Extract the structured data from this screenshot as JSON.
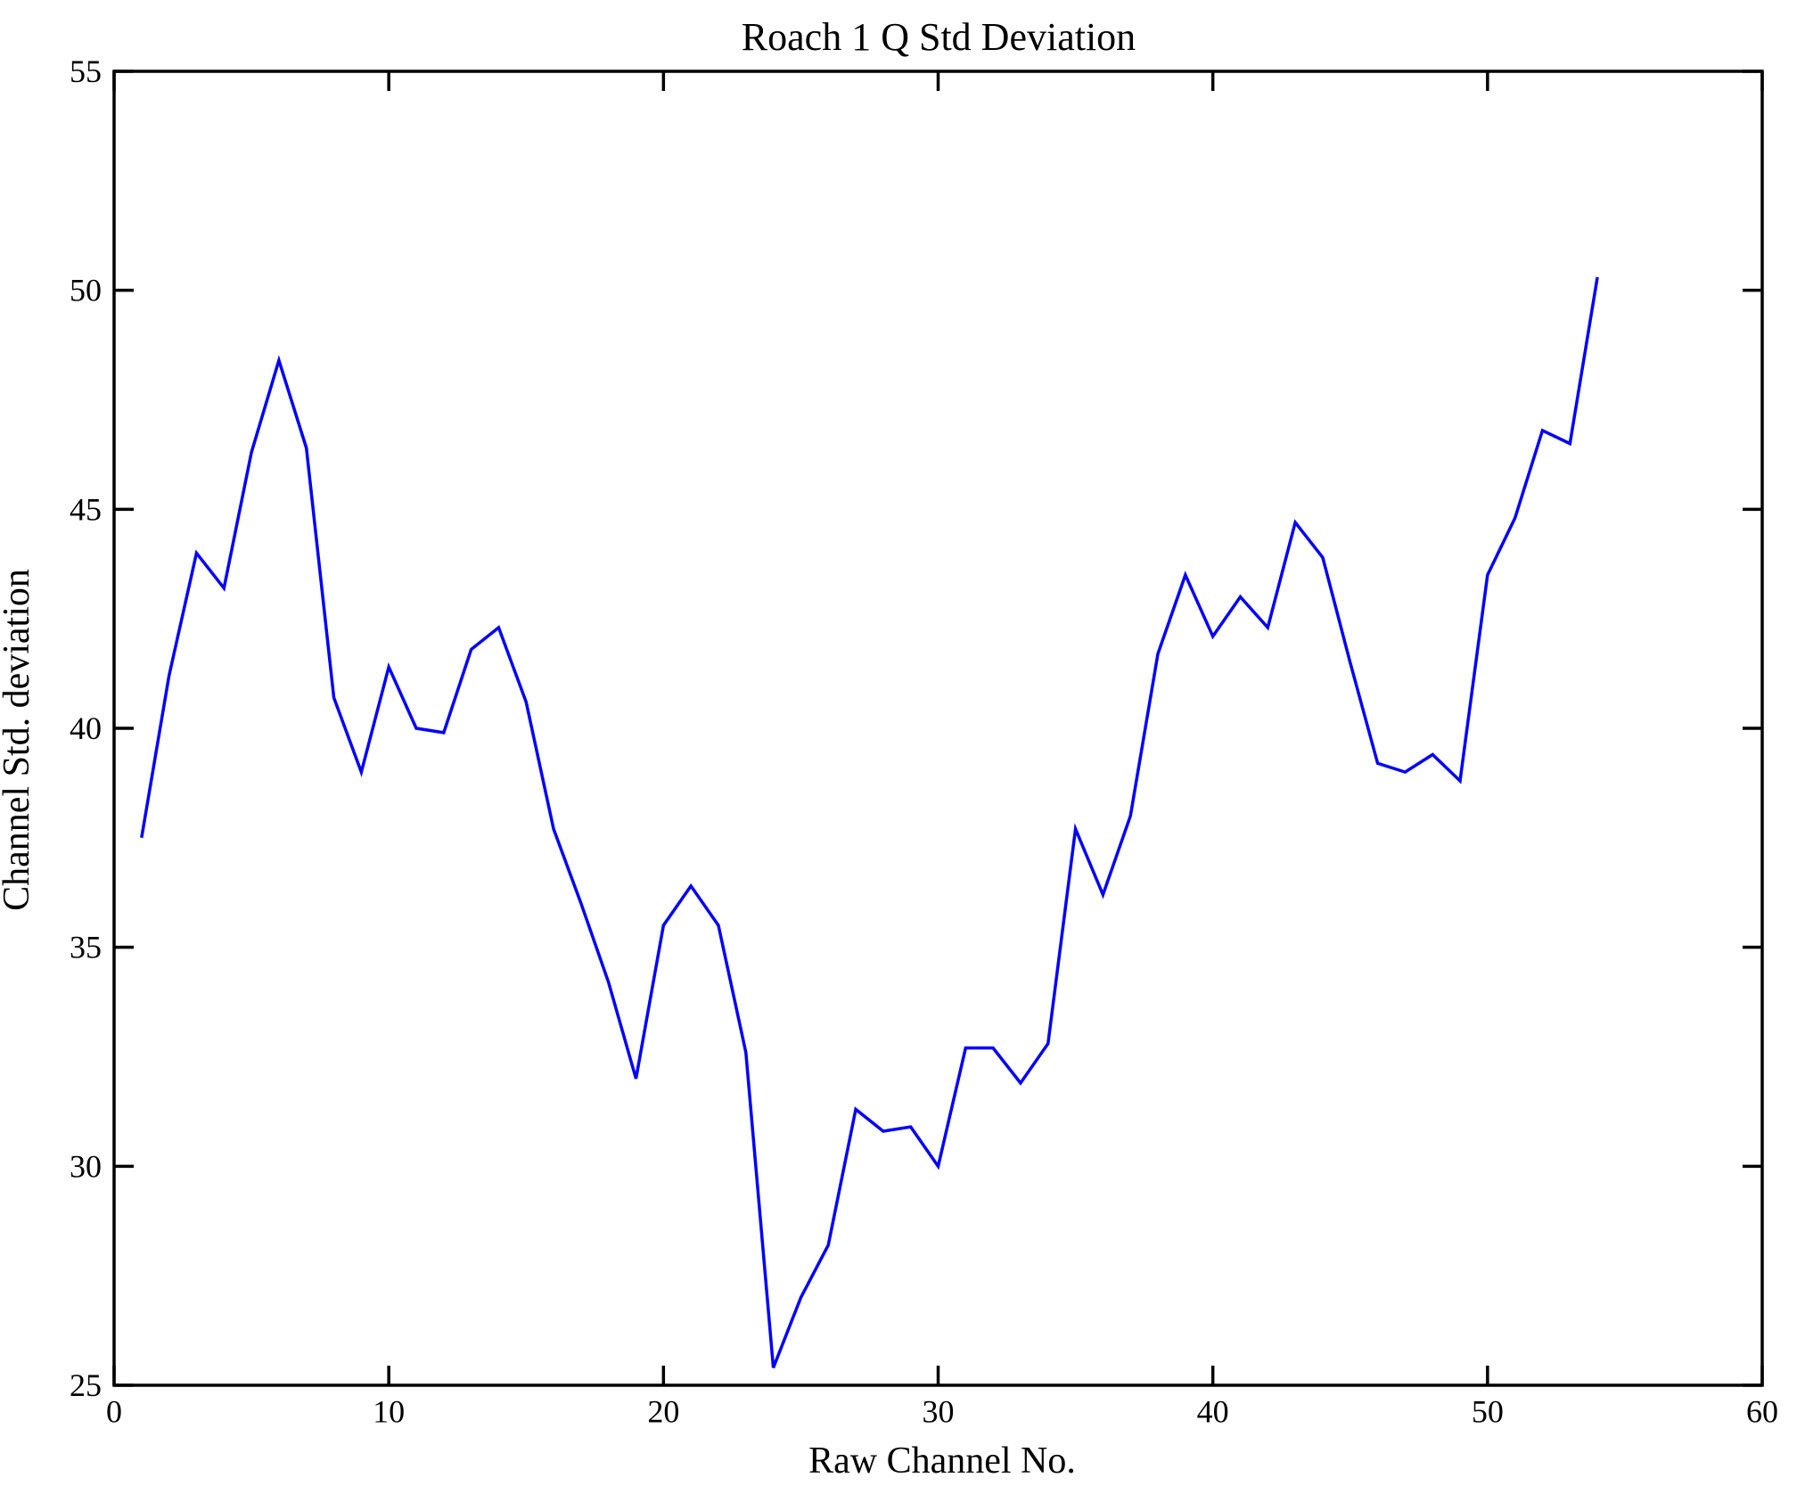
{
  "figure": {
    "background": "#ffffff"
  },
  "chart_data": {
    "type": "line",
    "title": "Roach 1 Q Std Deviation",
    "xlabel": "Raw Channel No.",
    "ylabel": "Channel Std. deviation",
    "xlim": [
      0,
      60
    ],
    "ylim": [
      25,
      55
    ],
    "xticks": [
      0,
      10,
      20,
      30,
      40,
      50,
      60
    ],
    "yticks": [
      25,
      30,
      35,
      40,
      45,
      50,
      55
    ],
    "grid": false,
    "legend_position": "none",
    "line_color": "#0000ff",
    "axis_color": "#000000",
    "series_name": "Channel Std. deviation",
    "x": [
      1,
      2,
      3,
      4,
      5,
      6,
      7,
      8,
      9,
      10,
      11,
      12,
      13,
      14,
      15,
      16,
      17,
      18,
      19,
      20,
      21,
      22,
      23,
      24,
      25,
      26,
      27,
      28,
      29,
      30,
      31,
      32,
      33,
      34,
      35,
      36,
      37,
      38,
      39,
      40,
      41,
      42,
      43,
      44,
      45,
      46,
      47,
      48,
      49,
      50,
      51,
      52,
      53,
      54
    ],
    "y": [
      37.5,
      41.2,
      44.0,
      43.2,
      46.3,
      48.4,
      46.4,
      40.7,
      39.0,
      41.4,
      40.0,
      39.9,
      41.8,
      42.3,
      40.6,
      37.7,
      36.0,
      34.2,
      32.0,
      35.5,
      36.4,
      35.5,
      32.6,
      25.4,
      27.0,
      28.2,
      31.3,
      30.8,
      30.9,
      30.0,
      32.7,
      32.7,
      31.9,
      32.8,
      37.7,
      36.2,
      38.0,
      41.7,
      43.5,
      42.1,
      43.0,
      42.3,
      44.7,
      43.9,
      41.5,
      39.2,
      39.0,
      39.4,
      38.8,
      43.5,
      44.8,
      46.8,
      46.5,
      50.3
    ]
  }
}
